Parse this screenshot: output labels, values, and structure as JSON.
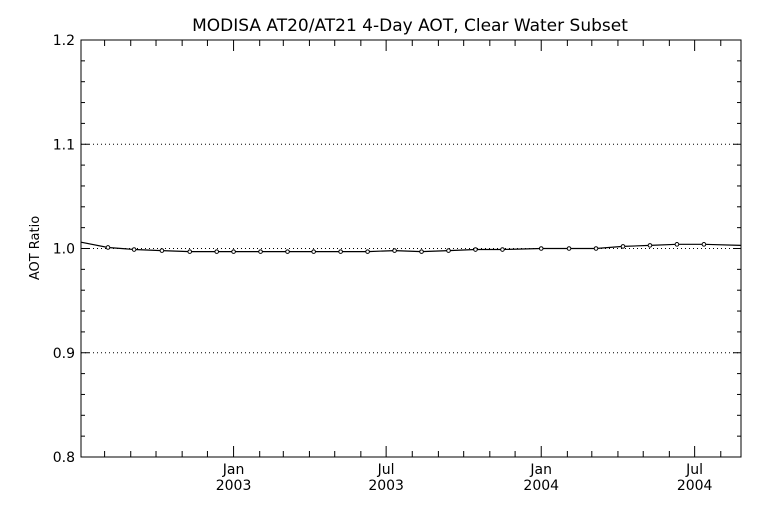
{
  "chart_data": {
    "type": "line",
    "title": "MODISA AT20/AT21 4-Day AOT, Clear Water Subset",
    "xlabel": "",
    "ylabel": "AOT Ratio",
    "ylim": [
      0.8,
      1.2
    ],
    "xlim": [
      "2002-07-04",
      "2004-08-25"
    ],
    "yticks": [
      "0.8",
      "0.9",
      "1.0",
      "1.1",
      "1.2"
    ],
    "grid_y": [
      0.9,
      1.0,
      1.1
    ],
    "xticks": [
      {
        "date": "2003-01-01",
        "month": "Jan",
        "year": "2003"
      },
      {
        "date": "2003-07-01",
        "month": "Jul",
        "year": "2003"
      },
      {
        "date": "2004-01-01",
        "month": "Jan",
        "year": "2004"
      },
      {
        "date": "2004-07-01",
        "month": "Jul",
        "year": "2004"
      }
    ],
    "minor_xticks": [
      "2002-08-01",
      "2002-09-01",
      "2002-10-01",
      "2002-11-01",
      "2002-12-01",
      "2003-02-01",
      "2003-03-01",
      "2003-04-01",
      "2003-05-01",
      "2003-06-01",
      "2003-08-01",
      "2003-09-01",
      "2003-10-01",
      "2003-11-01",
      "2003-12-01",
      "2004-02-01",
      "2004-03-01",
      "2004-04-01",
      "2004-05-01",
      "2004-06-01",
      "2004-08-01"
    ],
    "series": [
      {
        "points": [
          {
            "x": "2002-07-04",
            "y": 1.006
          },
          {
            "x": "2002-08-05",
            "y": 1.001
          },
          {
            "x": "2002-09-05",
            "y": 0.999
          },
          {
            "x": "2002-10-08",
            "y": 0.998
          },
          {
            "x": "2002-11-10",
            "y": 0.997
          },
          {
            "x": "2002-12-12",
            "y": 0.997
          },
          {
            "x": "2003-01-01",
            "y": 0.997
          },
          {
            "x": "2003-02-02",
            "y": 0.997
          },
          {
            "x": "2003-03-06",
            "y": 0.997
          },
          {
            "x": "2003-04-06",
            "y": 0.997
          },
          {
            "x": "2003-05-08",
            "y": 0.997
          },
          {
            "x": "2003-06-09",
            "y": 0.997
          },
          {
            "x": "2003-07-11",
            "y": 0.998
          },
          {
            "x": "2003-08-12",
            "y": 0.997
          },
          {
            "x": "2003-09-13",
            "y": 0.998
          },
          {
            "x": "2003-10-15",
            "y": 0.999
          },
          {
            "x": "2003-11-16",
            "y": 0.999
          },
          {
            "x": "2004-01-01",
            "y": 1.0
          },
          {
            "x": "2004-02-03",
            "y": 1.0
          },
          {
            "x": "2004-03-06",
            "y": 1.0
          },
          {
            "x": "2004-04-07",
            "y": 1.002
          },
          {
            "x": "2004-05-09",
            "y": 1.003
          },
          {
            "x": "2004-06-10",
            "y": 1.004
          },
          {
            "x": "2004-07-12",
            "y": 1.004
          },
          {
            "x": "2004-08-25",
            "y": 1.003
          }
        ]
      }
    ]
  }
}
